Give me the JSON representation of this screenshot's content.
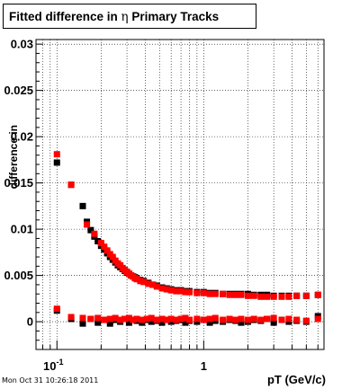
{
  "chart_data": {
    "type": "scatter",
    "title": {
      "prefix": "Fitted difference in ",
      "symbol": "η",
      "suffix": "  Primary Tracks"
    },
    "xlabel": "pT (GeV/c)",
    "ylabel": "difference in",
    "xscale": "log",
    "xlim": [
      0.072,
      6.6
    ],
    "ylim": [
      -0.003,
      0.0305
    ],
    "grid": true,
    "y_ticks": [
      {
        "value": 0,
        "label": "0"
      },
      {
        "value": 0.005,
        "label": "0.005"
      },
      {
        "value": 0.01,
        "label": "0.01"
      },
      {
        "value": 0.015,
        "label": "0.015"
      },
      {
        "value": 0.02,
        "label": "0.02"
      },
      {
        "value": 0.025,
        "label": "0.025"
      },
      {
        "value": 0.03,
        "label": "0.03"
      }
    ],
    "x_major_ticks": [
      {
        "value": 0.1,
        "base": "10",
        "exp": "-1"
      },
      {
        "value": 1,
        "base": "1",
        "exp": ""
      }
    ],
    "x_minor_ticks": [
      0.08,
      0.09,
      0.2,
      0.3,
      0.4,
      0.5,
      0.6,
      0.7,
      0.8,
      0.9,
      2,
      3,
      4,
      5,
      6
    ],
    "series": [
      {
        "color": "#000000",
        "marker": "square",
        "x": [
          0.1,
          0.125,
          0.15,
          0.16,
          0.17,
          0.18,
          0.19,
          0.2,
          0.21,
          0.22,
          0.23,
          0.24,
          0.25,
          0.26,
          0.27,
          0.28,
          0.29,
          0.3,
          0.31,
          0.32,
          0.33,
          0.34,
          0.35,
          0.37,
          0.39,
          0.42,
          0.45,
          0.48,
          0.52,
          0.56,
          0.6,
          0.65,
          0.7,
          0.75,
          0.8,
          0.9,
          1.0,
          1.1,
          1.2,
          1.35,
          1.5,
          1.65,
          1.8,
          2.0,
          2.2,
          2.45,
          2.7,
          3.0,
          3.4,
          3.8,
          4.3,
          5.0,
          6.0
        ],
        "y": [
          0.0172,
          0.0148,
          0.0125,
          0.0108,
          0.0099,
          0.0092,
          0.0087,
          0.0082,
          0.0078,
          0.0074,
          0.007,
          0.0067,
          0.0064,
          0.0061,
          0.0059,
          0.0057,
          0.0055,
          0.0053,
          0.0052,
          0.005,
          0.0049,
          0.0048,
          0.0047,
          0.0045,
          0.0044,
          0.0042,
          0.004,
          0.0039,
          0.0037,
          0.0036,
          0.0035,
          0.0034,
          0.0034,
          0.0033,
          0.0033,
          0.0032,
          0.0032,
          0.0031,
          0.0031,
          0.003,
          0.003,
          0.003,
          0.003,
          0.003,
          0.0029,
          0.0029,
          0.0029,
          0.0028,
          0.0028,
          0.0028,
          0.0028,
          0.0028,
          0.0029
        ]
      },
      {
        "color": "#ff0000",
        "marker": "square",
        "x": [
          0.1,
          0.125,
          0.16,
          0.18,
          0.2,
          0.21,
          0.22,
          0.23,
          0.24,
          0.25,
          0.26,
          0.27,
          0.28,
          0.29,
          0.3,
          0.31,
          0.32,
          0.33,
          0.34,
          0.35,
          0.37,
          0.39,
          0.42,
          0.45,
          0.48,
          0.52,
          0.56,
          0.6,
          0.65,
          0.7,
          0.75,
          0.8,
          0.9,
          1.0,
          1.1,
          1.2,
          1.35,
          1.5,
          1.65,
          1.8,
          2.0,
          2.2,
          2.45,
          2.7,
          3.0,
          3.4,
          3.8,
          4.3,
          5.0,
          6.0
        ],
        "y": [
          0.0181,
          0.0148,
          0.0105,
          0.0095,
          0.0085,
          0.0081,
          0.0077,
          0.0073,
          0.007,
          0.0066,
          0.0063,
          0.0061,
          0.0058,
          0.0056,
          0.0054,
          0.0052,
          0.005,
          0.0049,
          0.0047,
          0.0046,
          0.0044,
          0.0043,
          0.0041,
          0.004,
          0.0038,
          0.0036,
          0.0035,
          0.0034,
          0.0033,
          0.0033,
          0.0032,
          0.0032,
          0.0031,
          0.0031,
          0.003,
          0.003,
          0.003,
          0.0029,
          0.0029,
          0.0029,
          0.0028,
          0.0028,
          0.0027,
          0.0027,
          0.0027,
          0.0027,
          0.0027,
          0.0028,
          0.0028,
          0.0029
        ]
      },
      {
        "color": "#000000",
        "marker": "square",
        "x": [
          0.1,
          0.125,
          0.15,
          0.17,
          0.19,
          0.21,
          0.23,
          0.25,
          0.27,
          0.29,
          0.31,
          0.33,
          0.35,
          0.38,
          0.41,
          0.44,
          0.48,
          0.52,
          0.56,
          0.6,
          0.65,
          0.7,
          0.75,
          0.8,
          0.9,
          1.0,
          1.1,
          1.2,
          1.35,
          1.5,
          1.65,
          1.8,
          2.0,
          2.2,
          2.45,
          2.7,
          3.0,
          3.4,
          3.8,
          4.3,
          5.0,
          6.0
        ],
        "y": [
          0.0012,
          0.0003,
          -0.0002,
          0.0003,
          -0.0001,
          0.0002,
          -0.0002,
          0.0002,
          0.0,
          0.0003,
          -0.0001,
          0.0002,
          0.0001,
          -0.0001,
          0.0002,
          0.0,
          0.0001,
          -0.0001,
          0.0002,
          0.0,
          0.0001,
          0.0002,
          -0.0001,
          0.0001,
          0.0,
          0.0002,
          -0.0001,
          0.0001,
          0.0,
          0.0002,
          0.0001,
          -0.0001,
          0.0,
          0.0002,
          0.0001,
          0.0003,
          -0.0001,
          0.0002,
          0.0,
          0.0001,
          0.0,
          0.0006
        ]
      },
      {
        "color": "#ff0000",
        "marker": "square",
        "x": [
          0.1,
          0.125,
          0.15,
          0.17,
          0.19,
          0.21,
          0.23,
          0.25,
          0.27,
          0.29,
          0.31,
          0.33,
          0.35,
          0.38,
          0.41,
          0.44,
          0.48,
          0.52,
          0.56,
          0.6,
          0.65,
          0.7,
          0.75,
          0.8,
          0.9,
          1.0,
          1.1,
          1.2,
          1.35,
          1.5,
          1.65,
          1.8,
          2.0,
          2.2,
          2.45,
          2.7,
          3.0,
          3.4,
          3.8,
          4.3,
          5.0,
          6.0
        ],
        "y": [
          0.0014,
          0.0005,
          0.0004,
          0.0003,
          0.0004,
          0.0002,
          0.0003,
          0.0004,
          0.0002,
          0.0003,
          0.0004,
          0.0002,
          0.0003,
          0.0002,
          0.0003,
          0.0004,
          0.0002,
          0.0003,
          0.0002,
          0.0003,
          0.0002,
          0.0003,
          0.0004,
          0.0002,
          0.0003,
          0.0002,
          0.0003,
          0.0004,
          0.0002,
          0.0003,
          0.0002,
          0.0003,
          0.0002,
          0.0003,
          0.0002,
          0.0003,
          0.0004,
          0.0002,
          0.0003,
          0.0002,
          0.0001,
          0.0003
        ]
      }
    ]
  },
  "footer": {
    "datestamp": "Mon Oct 31 10:26:18 2011"
  }
}
